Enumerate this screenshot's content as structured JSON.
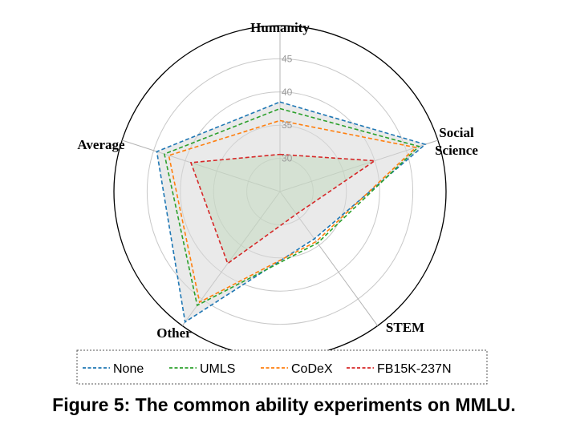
{
  "caption": "Figure 5: The common ability experiments on MMLU.",
  "chart_data": {
    "type": "radar",
    "axes": [
      "Humanity",
      "Social Science",
      "STEM",
      "Other",
      "Average"
    ],
    "axis_label_lines": [
      [
        "Humanity"
      ],
      [
        "Social",
        "Science"
      ],
      [
        "STEM"
      ],
      [
        "Other"
      ],
      [
        "Average"
      ]
    ],
    "r_range": [
      25,
      50
    ],
    "ticks": [
      30,
      35,
      40,
      45
    ],
    "grid": true,
    "legend_position": "bottom",
    "series": [
      {
        "name": "None",
        "color": "#1f77b4",
        "values": [
          38.5,
          48.0,
          33.8,
          49.3,
          44.5
        ]
      },
      {
        "name": "UMLS",
        "color": "#2ca02c",
        "values": [
          37.5,
          47.0,
          34.6,
          46.2,
          43.3
        ]
      },
      {
        "name": "CoDeX",
        "color": "#ff7f0e",
        "values": [
          35.7,
          46.5,
          34.3,
          45.6,
          42.6
        ]
      },
      {
        "name": "FB15K-237N",
        "color": "#d62728",
        "values": [
          30.6,
          40.0,
          29.2,
          38.4,
          39.1
        ]
      }
    ]
  }
}
